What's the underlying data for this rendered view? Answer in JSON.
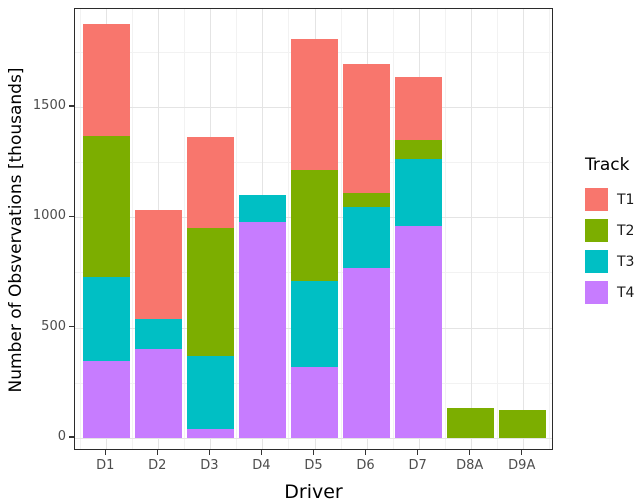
{
  "chart_data": {
    "type": "bar",
    "stacked": true,
    "title": "",
    "xlabel": "Driver",
    "ylabel": "Number of Obsvervations [thousands]",
    "categories": [
      "D1",
      "D2",
      "D3",
      "D4",
      "D5",
      "D6",
      "D7",
      "D8A",
      "D9A"
    ],
    "series": [
      {
        "name": "T1",
        "color": "#F8766D",
        "values": [
          505,
          495,
          415,
          0,
          595,
          585,
          285,
          0,
          0
        ]
      },
      {
        "name": "T2",
        "color": "#7CAE00",
        "values": [
          640,
          0,
          580,
          0,
          505,
          65,
          85,
          135,
          125
        ]
      },
      {
        "name": "T3",
        "color": "#00BFC4",
        "values": [
          380,
          135,
          330,
          120,
          390,
          275,
          305,
          0,
          0
        ]
      },
      {
        "name": "T4",
        "color": "#C77CFF",
        "values": [
          350,
          405,
          40,
          980,
          320,
          770,
          960,
          0,
          0
        ]
      }
    ],
    "stack_order_bottom_to_top": [
      "T4",
      "T3",
      "T2",
      "T1"
    ],
    "totals": [
      1875,
      1035,
      1365,
      1100,
      1810,
      1695,
      1635,
      135,
      125
    ],
    "y_ticks": [
      0,
      500,
      1000,
      1500
    ],
    "y_minor_ticks": [
      250,
      750,
      1250,
      1750
    ],
    "ylim": [
      0,
      1944
    ],
    "grid": true,
    "legend": {
      "title": "Track",
      "position": "right",
      "entries": [
        "T1",
        "T2",
        "T3",
        "T4"
      ]
    }
  }
}
